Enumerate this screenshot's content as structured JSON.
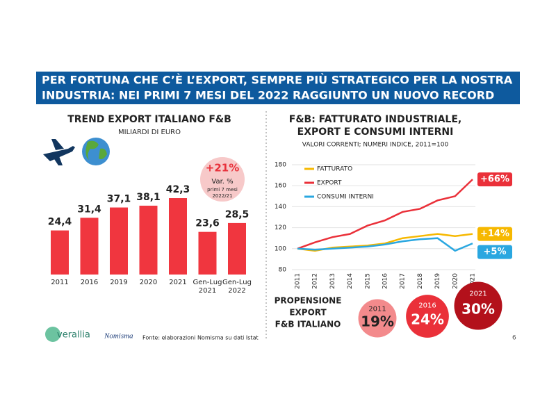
{
  "header": {
    "lines": [
      "PER FORTUNA CHE C’È L’EXPORT, SEMPRE PIÙ STRATEGICO PER LA NOSTRA",
      "INDUSTRIA: NEI PRIMI 7 MESI DEL 2022 RAGGIUNTO UN NUOVO RECORD"
    ]
  },
  "chart_data": [
    {
      "type": "bar",
      "title": "TREND EXPORT ITALIANO F&B",
      "subtitle": "MILIARDI DI EURO",
      "categories": [
        "2011",
        "2016",
        "2019",
        "2020",
        "2021",
        "Gen-Lug 2021",
        "Gen-Lug 2022"
      ],
      "values": [
        24.4,
        31.4,
        37.1,
        38.1,
        42.3,
        23.6,
        28.5
      ],
      "value_labels": [
        "24,4",
        "31,4",
        "37,1",
        "38,1",
        "42,3",
        "23,6",
        "28,5"
      ],
      "color": "#f0363f",
      "annotation": {
        "label": "+21%",
        "note": "Var. %",
        "period_lines": [
          "primi 7 mesi",
          "2022/21"
        ]
      }
    },
    {
      "type": "line",
      "title_lines": [
        "F&B: FATTURATO INDUSTRIALE,",
        "EXPORT E CONSUMI INTERNI"
      ],
      "subtitle": "VALORI CORRENTI; NUMERI INDICE, 2011=100",
      "x": [
        2011,
        2012,
        2013,
        2014,
        2015,
        2016,
        2017,
        2018,
        2019,
        2020,
        2021
      ],
      "xlim": [
        2011,
        2021
      ],
      "ylim": [
        80,
        180
      ],
      "yticks": [
        80,
        100,
        120,
        140,
        160,
        180
      ],
      "grid": true,
      "series": [
        {
          "name": "FATTURATO",
          "color": "#f6b800",
          "values": [
            100,
            98,
            101,
            102,
            103,
            105,
            110,
            112,
            114,
            112,
            114
          ],
          "end_label": "+14%"
        },
        {
          "name": "EXPORT",
          "color": "#ea3039",
          "values": [
            100,
            106,
            111,
            114,
            122,
            127,
            135,
            138,
            146,
            150,
            166
          ],
          "end_label": "+66%"
        },
        {
          "name": "CONSUMI INTERNI",
          "color": "#2aa7e0",
          "values": [
            100,
            99,
            100,
            101,
            102,
            104,
            107,
            109,
            110,
            98,
            105
          ],
          "end_label": "+5%"
        }
      ]
    }
  ],
  "propensity": {
    "title_lines": [
      "PROPENSIONE",
      "EXPORT",
      "F&B ITALIANO"
    ],
    "items": [
      {
        "year": "2011",
        "value": 19,
        "label": "19%",
        "color": "#f38a8c"
      },
      {
        "year": "2016",
        "value": 24,
        "label": "24%",
        "color": "#ea3039"
      },
      {
        "year": "2021",
        "value": 30,
        "label": "30%",
        "color": "#b3111b"
      }
    ]
  },
  "footer": {
    "source": "Fonte: elaborazioni Nomisma su dati Istat",
    "page": "6",
    "logo1": "verallia",
    "logo2": "Nomisma"
  }
}
